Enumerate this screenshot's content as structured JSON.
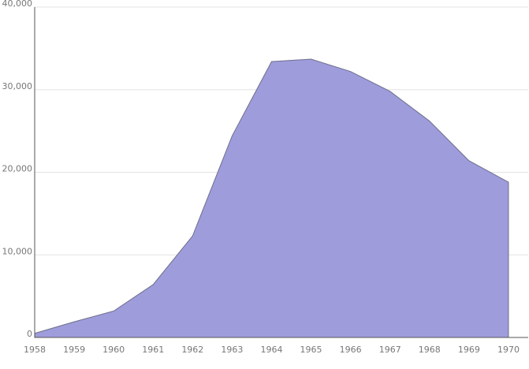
{
  "chart_data": {
    "type": "area",
    "title": "",
    "xlabel": "",
    "ylabel": "",
    "x": [
      1958,
      1959,
      1960,
      1961,
      1962,
      1963,
      1964,
      1965,
      1966,
      1967,
      1968,
      1969,
      1970
    ],
    "x_tick_labels": [
      "1958",
      "1959",
      "1960",
      "1961",
      "1962",
      "1963",
      "1964",
      "1965",
      "1966",
      "1967",
      "1968",
      "1969",
      "1970"
    ],
    "series": [
      {
        "values": [
          500,
          1900,
          3200,
          6400,
          12300,
          24400,
          33400,
          33700,
          32200,
          29800,
          26200,
          21400,
          18800
        ],
        "color": "#9e9cdb"
      }
    ],
    "xlim": [
      1958,
      1970.5
    ],
    "ylim": [
      0,
      40000
    ],
    "y_ticks": [
      0,
      10000,
      20000,
      30000,
      40000
    ],
    "y_tick_labels": [
      "0",
      "10,000",
      "20,000",
      "30,000",
      "40,000"
    ],
    "grid": true,
    "legend": "none"
  }
}
